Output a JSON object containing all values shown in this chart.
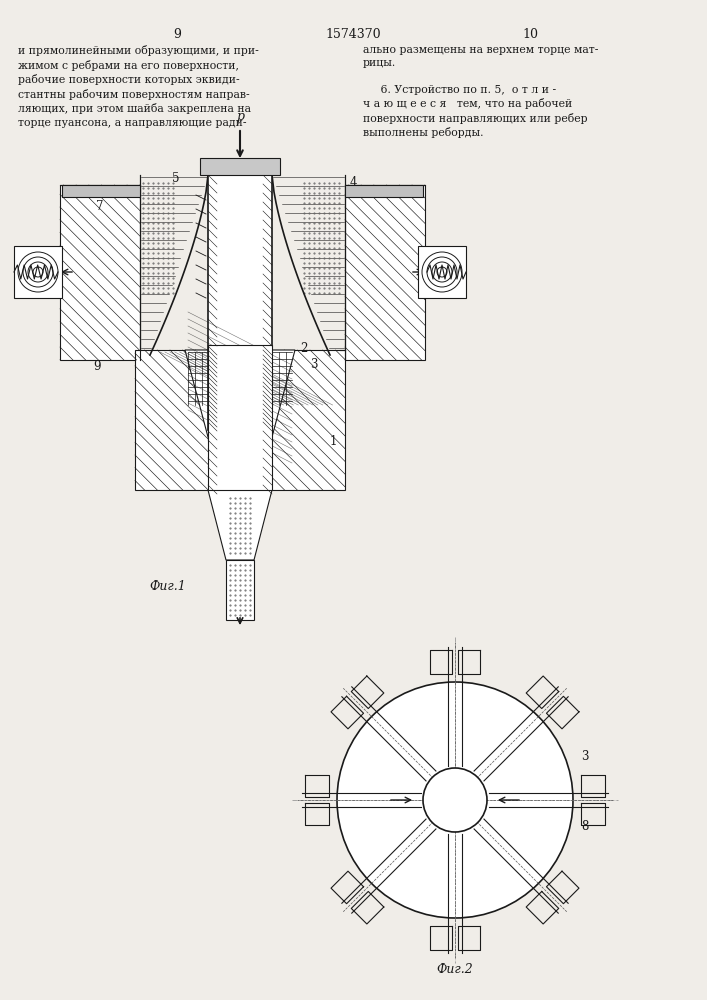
{
  "page_number_left": "9",
  "page_number_center": "1574370",
  "page_number_right": "10",
  "text_left": "и прямолинейными образующими, и при-\nжимом с ребрами на его поверхности,\nрабочие поверхности которых эквиди-\nстантны рабочим поверхностям направ-\nляющих, при этом шайба закреплена на\nторце пуансона, а направляющие ради-",
  "text_right": "ально размещены на верхнем торце мат-\nрицы.\n\n     6. Устройство по п. 5,  о т л и -\nч а ю щ е е с я   тем, что на рабочей\nповерхности направляющих или ребер\nвыполнены реборды.",
  "fig1_label": "Фиг.1",
  "fig2_label": "Фиг.2",
  "bg_color": "#f0ede8",
  "line_color": "#1a1a1a"
}
